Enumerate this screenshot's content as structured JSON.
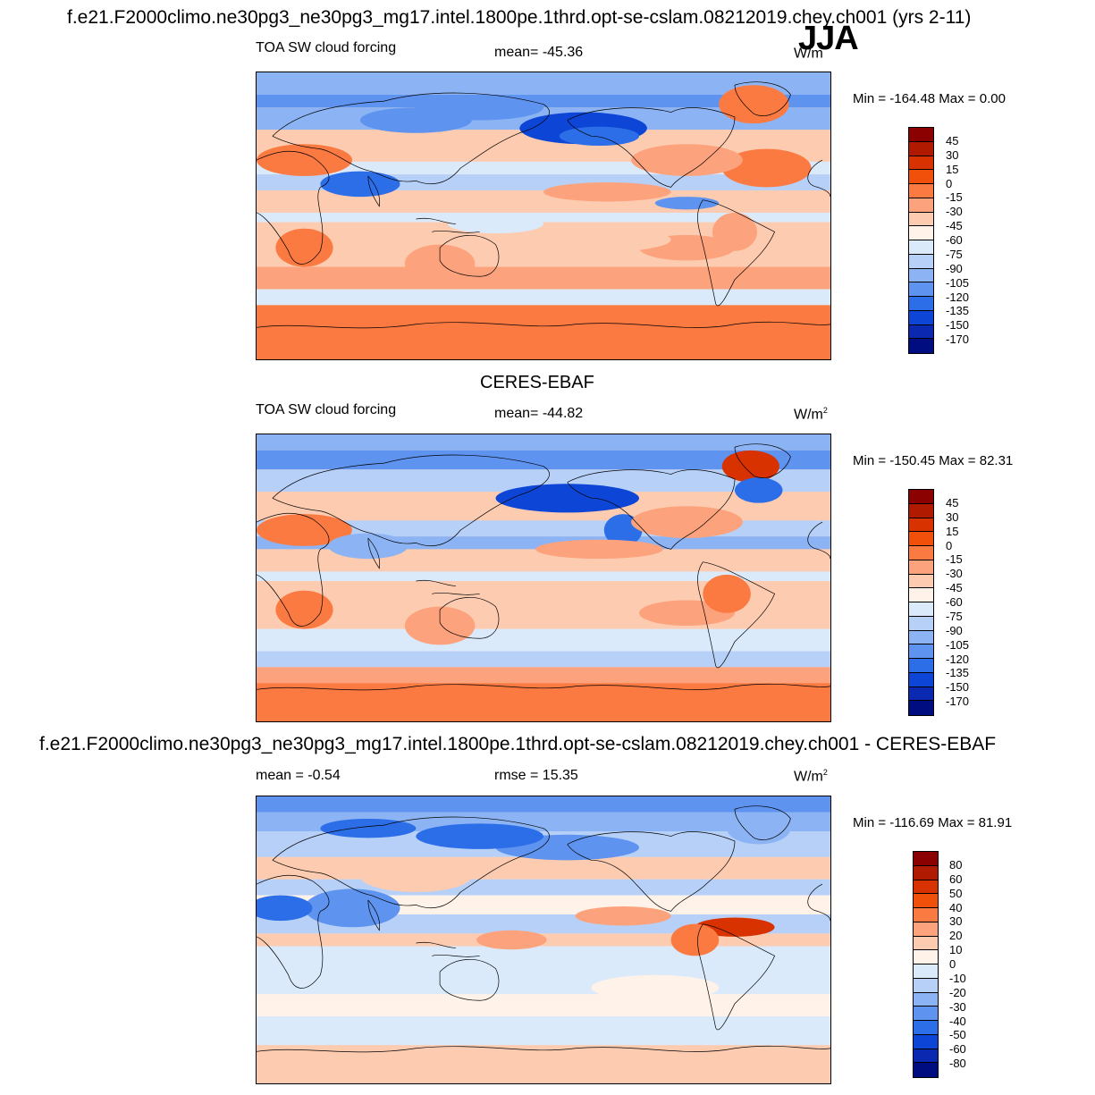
{
  "page": {
    "main_title": "f.e21.F2000climo.ne30pg3_ne30pg3_mg17.intel.1800pe.1thrd.opt-se-cslam.08212019.chey.ch001 (yrs 2-11)",
    "season": "JJA"
  },
  "panels": [
    {
      "title": "",
      "variable": "TOA SW cloud forcing",
      "stat_text": "mean= -45.36",
      "units": "W/m",
      "units_sup": "",
      "minmax": "Min = -164.48 Max =   0.00",
      "colorbar_labels": [
        "45",
        "30",
        "15",
        "0",
        "-15",
        "-30",
        "-45",
        "-60",
        "-75",
        "-90",
        "-105",
        "-120",
        "-135",
        "-150",
        "-170"
      ],
      "colorbar_colors": [
        "#8b0000",
        "#b01a00",
        "#d83200",
        "#f0500a",
        "#fb7a42",
        "#fca27c",
        "#fdcbb0",
        "#fff2e8",
        "#dbeafb",
        "#b7d0f8",
        "#8cb4f4",
        "#5e93ef",
        "#2c6ee8",
        "#0d45d6",
        "#0a28b0",
        "#000d80"
      ],
      "field": "model"
    },
    {
      "title": "CERES-EBAF",
      "variable": "TOA SW cloud forcing",
      "stat_text": "mean= -44.82",
      "units": "W/m",
      "units_sup": "2",
      "minmax": "Min = -150.45 Max =  82.31",
      "colorbar_labels": [
        "45",
        "30",
        "15",
        "0",
        "-15",
        "-30",
        "-45",
        "-60",
        "-75",
        "-90",
        "-105",
        "-120",
        "-135",
        "-150",
        "-170"
      ],
      "colorbar_colors": [
        "#8b0000",
        "#b01a00",
        "#d83200",
        "#f0500a",
        "#fb7a42",
        "#fca27c",
        "#fdcbb0",
        "#fff2e8",
        "#dbeafb",
        "#b7d0f8",
        "#8cb4f4",
        "#5e93ef",
        "#2c6ee8",
        "#0d45d6",
        "#0a28b0",
        "#000d80"
      ],
      "field": "obs"
    },
    {
      "title": "f.e21.F2000climo.ne30pg3_ne30pg3_mg17.intel.1800pe.1thrd.opt-se-cslam.08212019.chey.ch001 - CERES-EBAF",
      "variable": "mean =  -0.54",
      "stat_text": "rmse =  15.35",
      "units": "W/m",
      "units_sup": "2",
      "minmax": "Min = -116.69 Max =  81.91",
      "colorbar_labels": [
        "80",
        "60",
        "50",
        "40",
        "30",
        "20",
        "10",
        "0",
        "-10",
        "-20",
        "-30",
        "-40",
        "-50",
        "-60",
        "-80"
      ],
      "colorbar_colors": [
        "#8b0000",
        "#b01a00",
        "#d83200",
        "#f0500a",
        "#fb7a42",
        "#fca27c",
        "#fdcbb0",
        "#fff2e8",
        "#dbeafb",
        "#b7d0f8",
        "#8cb4f4",
        "#5e93ef",
        "#2c6ee8",
        "#0d45d6",
        "#0a28b0",
        "#000d80"
      ],
      "field": "diff"
    }
  ]
}
